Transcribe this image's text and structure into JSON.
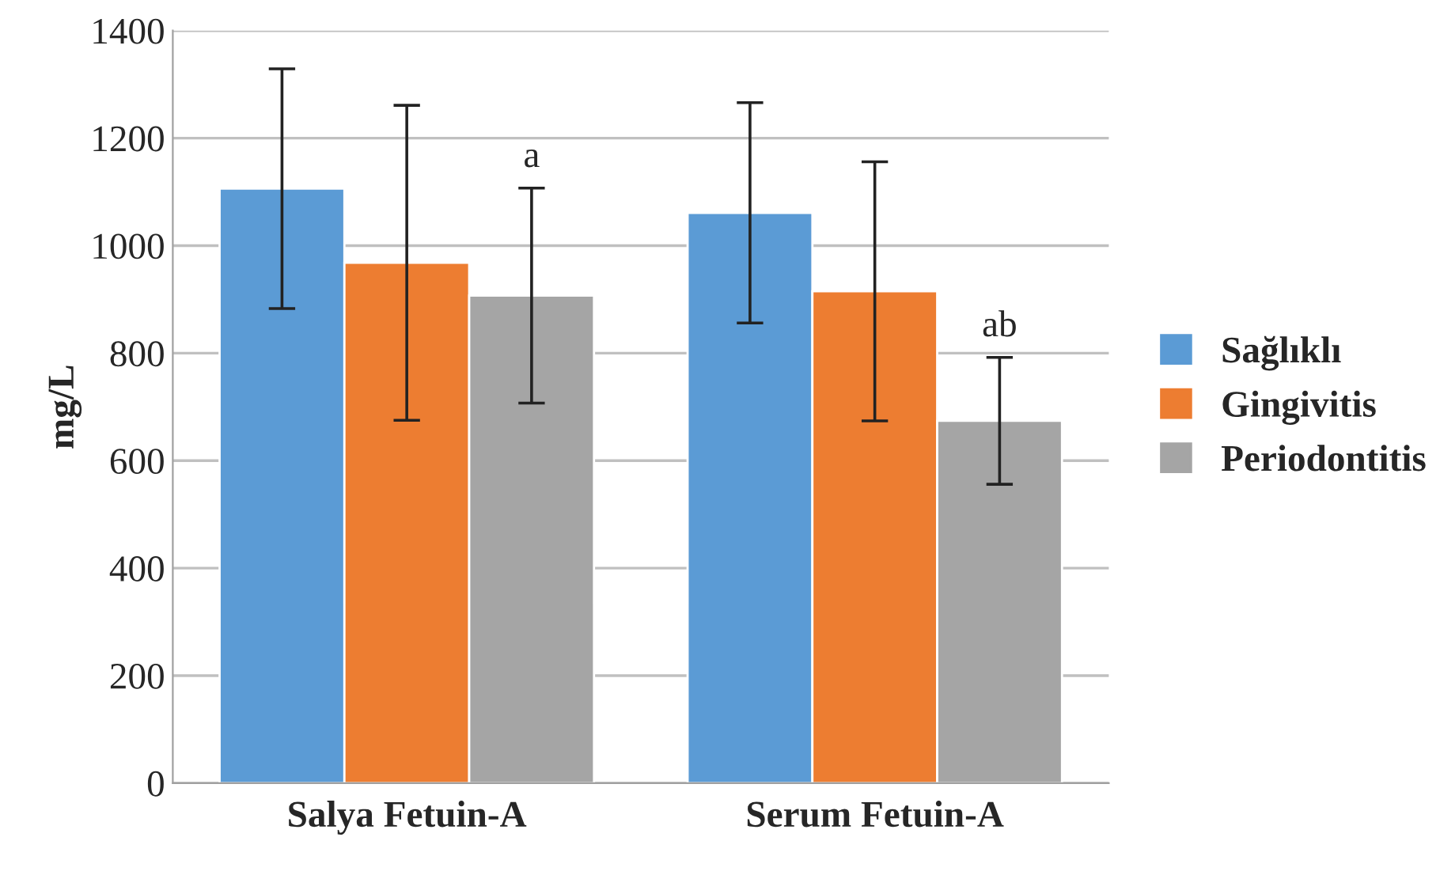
{
  "chart_data": {
    "type": "bar",
    "ylabel": "mg/L",
    "categories": [
      "Salya Fetuin-A",
      "Serum Fetuin-A"
    ],
    "series": [
      {
        "name": "Sağlıklı",
        "color": "#5b9bd5",
        "values": [
          1106,
          1061
        ],
        "errors": [
          223,
          205
        ]
      },
      {
        "name": "Gingivitis",
        "color": "#ed7d31",
        "values": [
          968,
          915
        ],
        "errors": [
          293,
          241
        ]
      },
      {
        "name": "Periodontitis",
        "color": "#a5a5a5",
        "values": [
          907,
          674
        ],
        "errors": [
          200,
          118
        ]
      }
    ],
    "annotations": [
      "a",
      "ab"
    ],
    "ylim": [
      0,
      1400
    ],
    "yticks": [
      0,
      200,
      400,
      600,
      800,
      1000,
      1200,
      1400
    ],
    "grid": "y",
    "legend": "right"
  }
}
